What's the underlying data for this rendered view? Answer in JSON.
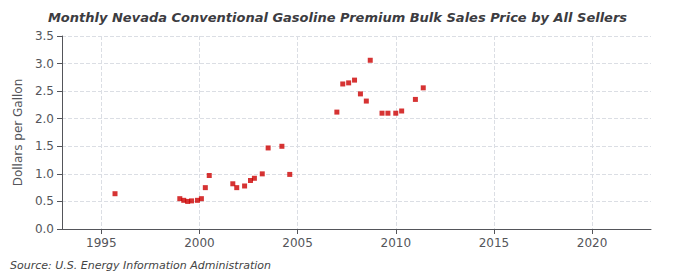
{
  "chart_data": {
    "type": "scatter",
    "title": "Monthly Nevada Conventional Gasoline Premium Bulk Sales Price by All Sellers",
    "ylabel": "Dollars per Gallon",
    "annotations": [
      "Source: U.S. Energy Information Administration"
    ],
    "color": "#cc0000",
    "marker": "square",
    "grid": true,
    "xlim": [
      1993,
      2023
    ],
    "ylim": [
      0.0,
      3.5
    ],
    "xticks": [
      1995,
      2000,
      2005,
      2010,
      2015,
      2020
    ],
    "yticks": [
      {
        "value": 0.0,
        "label": "0.0"
      },
      0.5,
      {
        "value": 1.0,
        "label": "1.0"
      },
      1.5,
      {
        "value": 2.0,
        "label": "2.0"
      },
      2.5,
      {
        "value": 3.0,
        "label": "3.0"
      },
      3.5
    ],
    "x": [
      1995.7,
      1999.0,
      1999.2,
      1999.4,
      1999.6,
      1999.9,
      2000.1,
      2000.3,
      2000.5,
      2001.7,
      2001.9,
      2002.3,
      2002.6,
      2002.8,
      2003.2,
      2003.5,
      2004.2,
      2004.6,
      2007.0,
      2007.3,
      2007.6,
      2007.9,
      2008.2,
      2008.5,
      2008.7,
      2009.3,
      2009.6,
      2010.0,
      2010.3,
      2011.0,
      2011.4
    ],
    "values": [
      0.64,
      0.55,
      0.52,
      0.5,
      0.51,
      0.52,
      0.55,
      0.75,
      0.97,
      0.82,
      0.75,
      0.78,
      0.88,
      0.92,
      1.0,
      1.47,
      1.5,
      0.99,
      2.12,
      2.63,
      2.65,
      2.7,
      2.45,
      2.32,
      3.06,
      2.1,
      2.1,
      2.1,
      2.14,
      2.35,
      2.56
    ]
  }
}
